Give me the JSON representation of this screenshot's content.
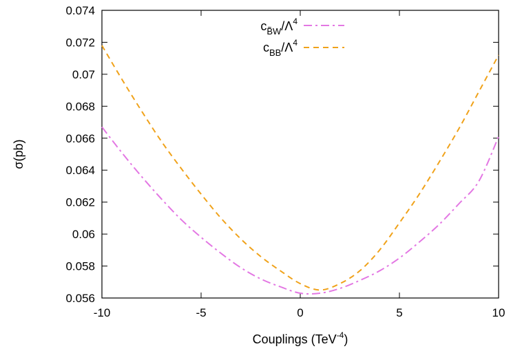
{
  "chart_data": {
    "type": "line",
    "xlabel": "Couplings (TeV",
    "xlabel_sup": "-4",
    "xlabel_tail": ")",
    "ylabel": "σ(pb)",
    "xlim": [
      -10,
      10
    ],
    "ylim": [
      0.056,
      0.074
    ],
    "xticks": [
      -10,
      -5,
      0,
      5,
      10
    ],
    "xtick_labels": [
      "-10",
      "-5",
      "0",
      "5",
      "10"
    ],
    "yticks": [
      0.056,
      0.058,
      0.06,
      0.062,
      0.064,
      0.066,
      0.068,
      0.07,
      0.072,
      0.074
    ],
    "ytick_labels": [
      "0.056",
      "0.058",
      "0.06",
      "0.062",
      "0.064",
      "0.066",
      "0.068",
      "0.07",
      "0.072",
      "0.074"
    ],
    "grid": false,
    "legend_position": "top-center",
    "series": [
      {
        "name": "c_{B̃W}/Λ^4",
        "legend_main": "c",
        "legend_sub": "B̃W",
        "legend_slash": "/Λ",
        "legend_sup": "4",
        "color": "#e377e3",
        "dash": "dash-dot",
        "x": [
          -10,
          -9,
          -8,
          -7,
          -6,
          -5,
          -4,
          -3,
          -2,
          -1,
          0,
          1,
          2,
          3,
          4,
          5,
          6,
          7,
          8,
          9,
          10
        ],
        "y": [
          0.0667,
          0.0651,
          0.0636,
          0.0622,
          0.0609,
          0.0598,
          0.0588,
          0.0579,
          0.0572,
          0.0567,
          0.0563,
          0.0563,
          0.0566,
          0.0571,
          0.0577,
          0.0585,
          0.0595,
          0.0606,
          0.0619,
          0.0633,
          0.0661
        ]
      },
      {
        "name": "c_{BB}/Λ^4",
        "legend_main": "c",
        "legend_sub": "BB",
        "legend_slash": "/Λ",
        "legend_sup": "4",
        "color": "#f0a21a",
        "dash": "dashed",
        "x": [
          -10,
          -9,
          -8,
          -7,
          -6,
          -5,
          -4,
          -3,
          -2,
          -1,
          0,
          1,
          2,
          3,
          4,
          5,
          6,
          7,
          8,
          9,
          10
        ],
        "y": [
          0.0718,
          0.0697,
          0.0677,
          0.0658,
          0.0641,
          0.0625,
          0.061,
          0.0597,
          0.0586,
          0.0577,
          0.0569,
          0.0565,
          0.0569,
          0.0577,
          0.059,
          0.0607,
          0.0625,
          0.0645,
          0.0666,
          0.0689,
          0.0712
        ]
      }
    ]
  }
}
